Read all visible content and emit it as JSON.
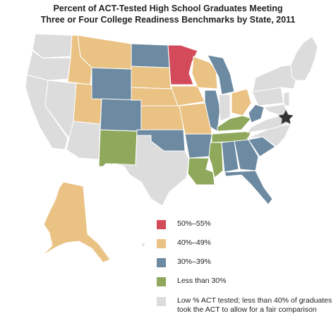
{
  "title_line1": "Percent of ACT-Tested High School Graduates Meeting",
  "title_line2": "Three or Four College Readiness Benchmarks by State, 2011",
  "colors": {
    "c50_55": "#d34b5a",
    "c40_49": "#eac284",
    "c30_39": "#6c8aa1",
    "lt30": "#8fa85b",
    "low": "#dcdcdc",
    "border": "#ffffff",
    "star": "#333333"
  },
  "legend": [
    {
      "color": "#d34b5a",
      "label": "50%–55%"
    },
    {
      "color": "#eac284",
      "label": "40%–49%"
    },
    {
      "color": "#6c8aa1",
      "label": "30%–39%"
    },
    {
      "color": "#8fa85b",
      "label": "Less than 30%"
    },
    {
      "color": "#dcdcdc",
      "label": "Low % ACT tested; less than 40% of graduates took the ACT to allow for a fair comparison"
    }
  ]
}
